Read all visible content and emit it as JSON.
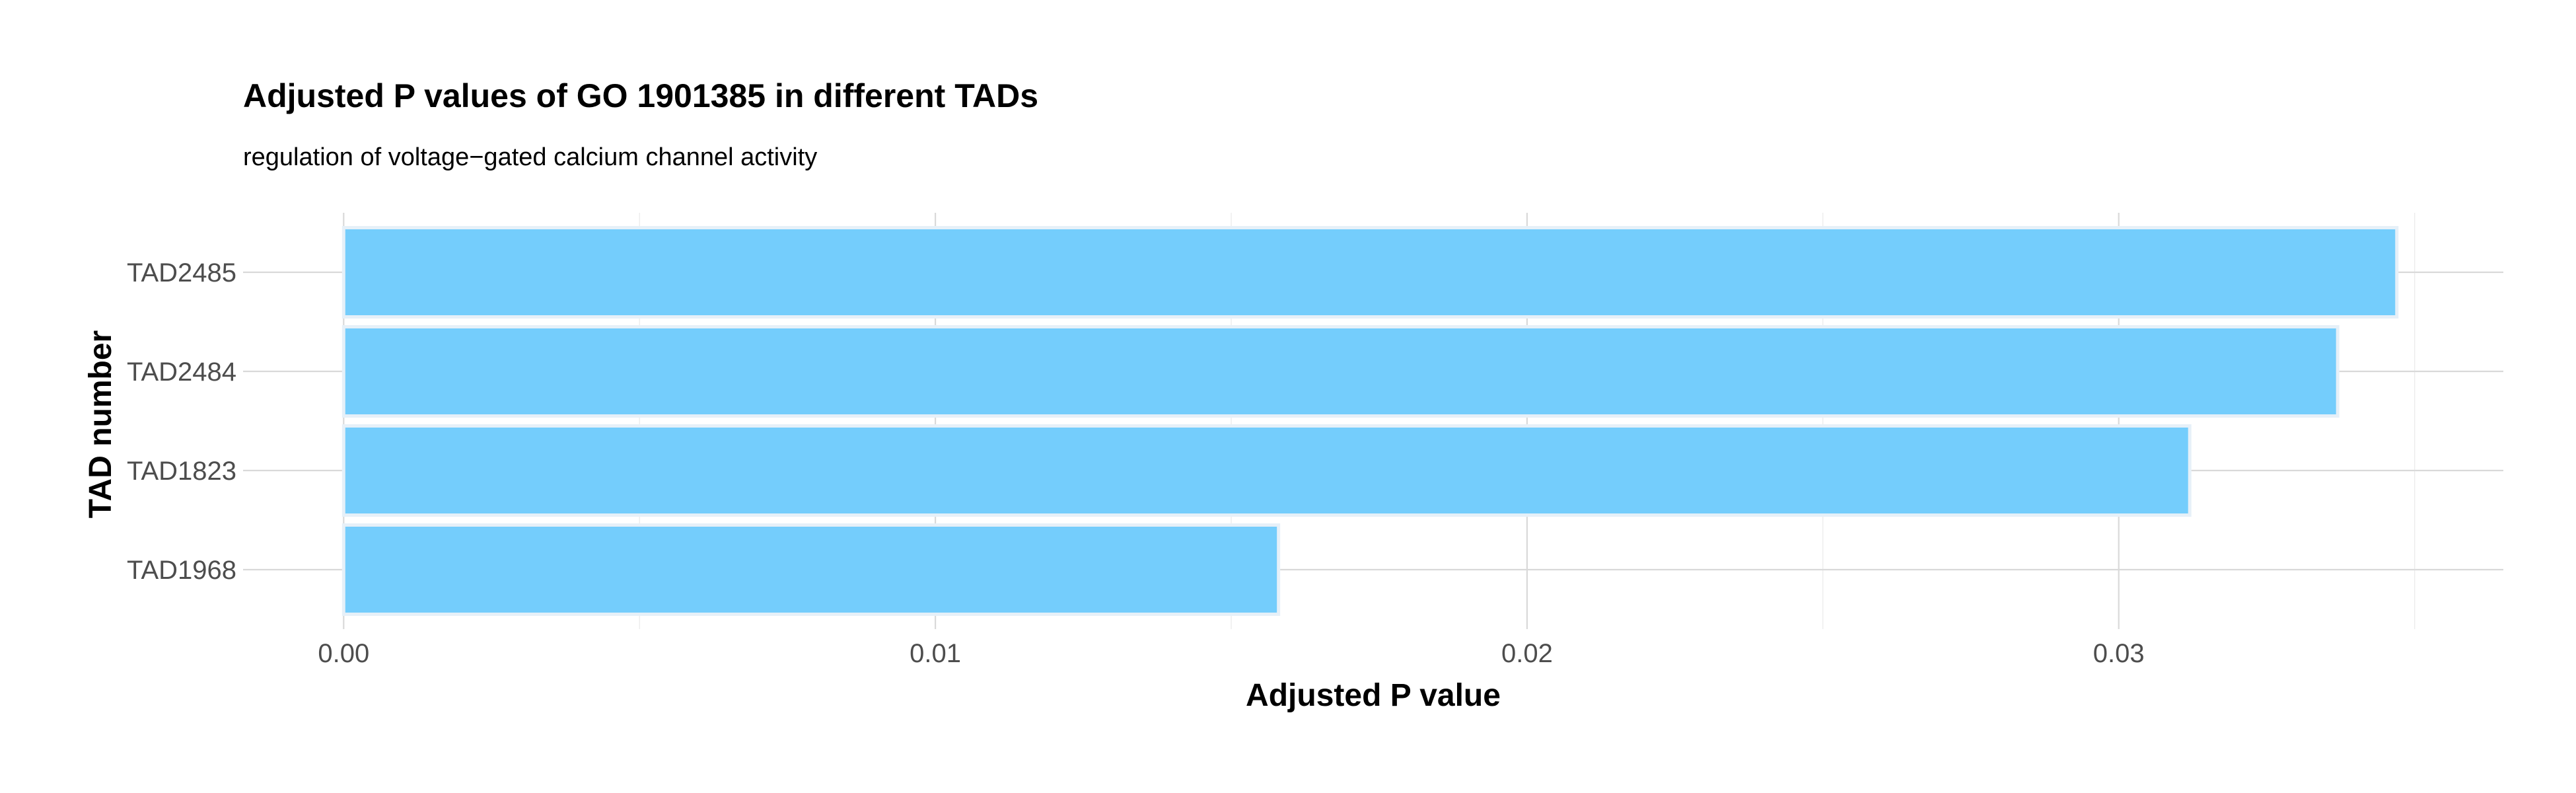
{
  "chart_data": {
    "type": "bar",
    "orientation": "horizontal",
    "title": "Adjusted P values of GO 1901385 in different TADs",
    "subtitle": "regulation of voltage−gated calcium channel activity",
    "xlabel": "Adjusted P value",
    "ylabel": "TAD number",
    "categories": [
      "TAD2485",
      "TAD2484",
      "TAD1823",
      "TAD1968"
    ],
    "values": [
      0.0347,
      0.0337,
      0.0312,
      0.0158
    ],
    "xlim": [
      -0.0017,
      0.0365
    ],
    "x_ticks": [
      0,
      0.01,
      0.02,
      0.03
    ],
    "x_tick_labels": [
      "0.00",
      "0.01",
      "0.02",
      "0.03"
    ],
    "grid": true,
    "legend": "none",
    "colors": {
      "bar_fill": "#74cdfc",
      "bar_outline": "#e6f0f8",
      "grid_major": "#d9d9d9",
      "grid_minor": "#ececec"
    }
  }
}
